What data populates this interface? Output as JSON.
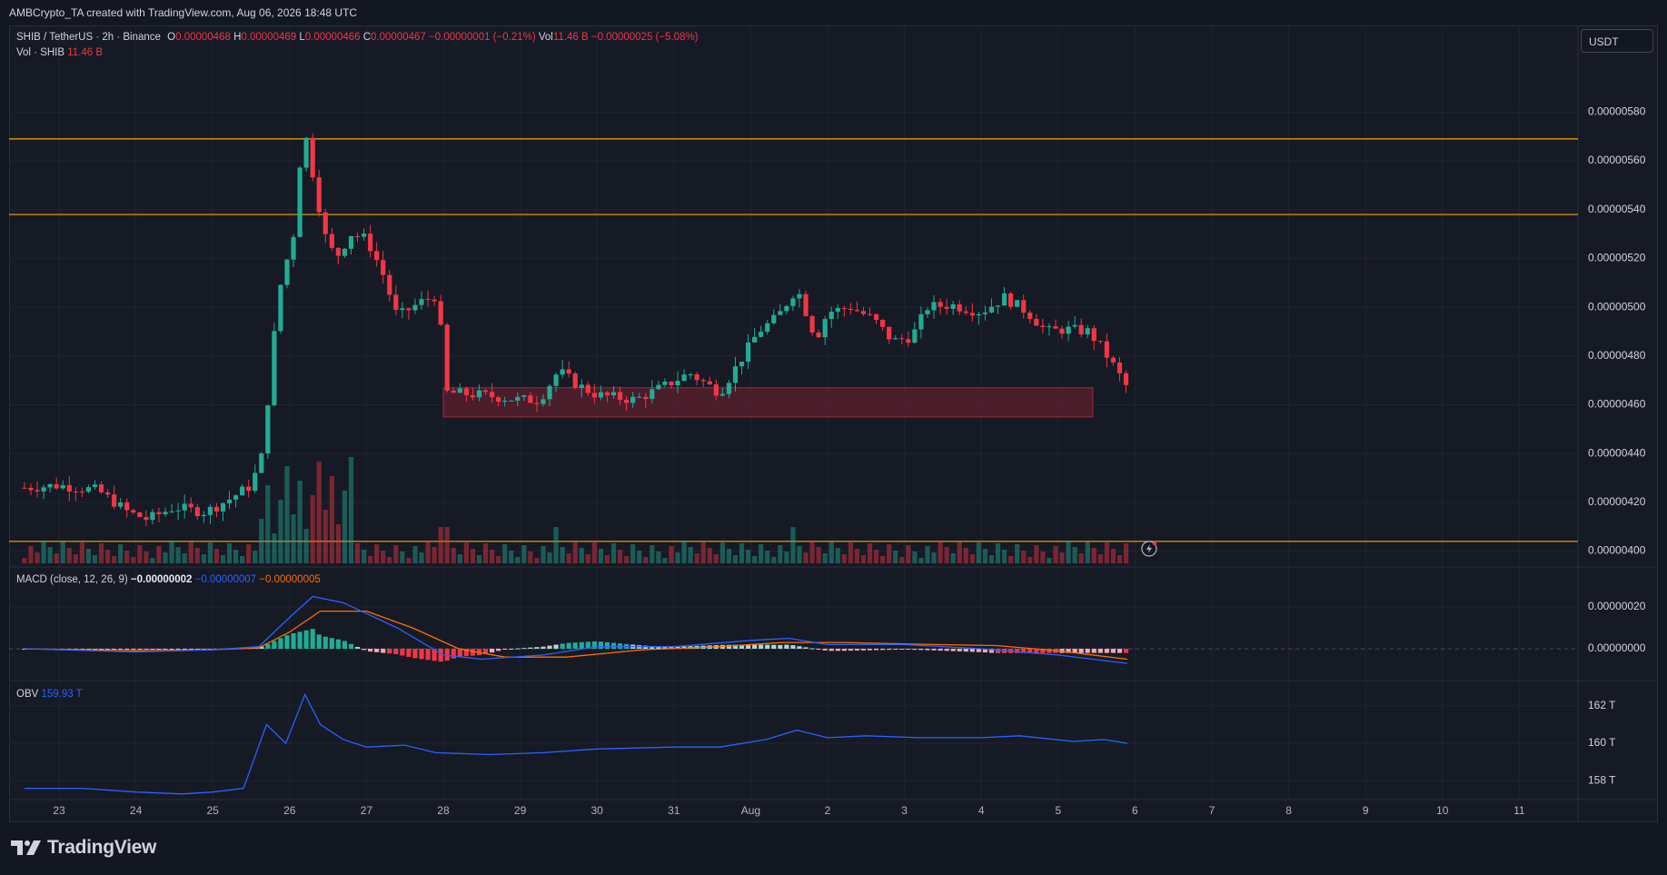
{
  "header": {
    "credit": "AMBCrypto_TA created with TradingView.com, Aug 06, 2026 18:48 UTC"
  },
  "legend": {
    "symbol": "SHIB / TetherUS · 2h · Binance",
    "o_label": "O",
    "o_value": "0.00000468",
    "h_label": "H",
    "h_value": "0.00000469",
    "l_label": "L",
    "l_value": "0.00000466",
    "c_label": "C",
    "c_value": "0.00000467",
    "change": "−0.00000001 (−0.21%)",
    "vol_label": "Vol",
    "vol_value": "11.46 B",
    "vol_change": "−0.00000025 (−5.08%)",
    "vol_line_label": "Vol · SHIB",
    "vol_line_value": "11.46 B"
  },
  "macd_legend": {
    "label": "MACD (close, 12, 26, 9)",
    "hist": "−0.00000002",
    "macd": "−0.00000007",
    "signal": "−0.00000005"
  },
  "obv_legend": {
    "label": "OBV",
    "value": "159.93 T"
  },
  "currency": "USDT",
  "brand": "TradingView",
  "colors": {
    "up": "#22ab94",
    "down": "#f23645",
    "macd": "#2962ff",
    "signal": "#ff6d00",
    "obv": "#2962ff",
    "level": "#f7a600",
    "zone": "#5c1f2e"
  },
  "chart_data": [
    {
      "type": "candlestick",
      "title": "SHIB / TetherUS · 2h · Binance",
      "x_ticks": [
        "23",
        "24",
        "25",
        "26",
        "27",
        "28",
        "29",
        "30",
        "31",
        "Aug",
        "2",
        "3",
        "4",
        "5",
        "6",
        "7",
        "8",
        "9",
        "10",
        "11"
      ],
      "y_ticks": [
        "0.00000580",
        "0.00000560",
        "0.00000540",
        "0.00000520",
        "0.00000500",
        "0.00000480",
        "0.00000460",
        "0.00000440",
        "0.00000420",
        "0.00000400"
      ],
      "ylim": [
        3.95e-06,
        5.98e-06
      ],
      "horizontal_levels": [
        5.69e-06,
        5.38e-06,
        4.04e-06
      ],
      "support_zone": {
        "from": 4.55e-06,
        "to": 4.67e-06,
        "start_day": 28.0,
        "end_day": 36.45
      },
      "keypoints": [
        {
          "day": 22.55,
          "price": 4.26e-06
        },
        {
          "day": 23.0,
          "price": 4.27e-06
        },
        {
          "day": 23.5,
          "price": 4.25e-06
        },
        {
          "day": 23.9,
          "price": 4.16e-06
        },
        {
          "day": 24.15,
          "price": 4.13e-06
        },
        {
          "day": 24.5,
          "price": 4.18e-06
        },
        {
          "day": 24.9,
          "price": 4.16e-06
        },
        {
          "day": 25.2,
          "price": 4.21e-06
        },
        {
          "day": 25.5,
          "price": 4.27e-06
        },
        {
          "day": 25.65,
          "price": 4.4e-06
        },
        {
          "day": 25.85,
          "price": 5.05e-06
        },
        {
          "day": 26.05,
          "price": 5.3e-06
        },
        {
          "day": 26.18,
          "price": 5.75e-06
        },
        {
          "day": 26.45,
          "price": 5.3e-06
        },
        {
          "day": 26.6,
          "price": 5.2e-06
        },
        {
          "day": 26.8,
          "price": 5.3e-06
        },
        {
          "day": 27.0,
          "price": 5.28e-06
        },
        {
          "day": 27.2,
          "price": 5.15e-06
        },
        {
          "day": 27.4,
          "price": 4.96e-06
        },
        {
          "day": 27.7,
          "price": 5.02e-06
        },
        {
          "day": 27.92,
          "price": 5.05e-06
        },
        {
          "day": 28.05,
          "price": 4.65e-06
        },
        {
          "day": 28.5,
          "price": 4.64e-06
        },
        {
          "day": 29.0,
          "price": 4.62e-06
        },
        {
          "day": 29.25,
          "price": 4.62e-06
        },
        {
          "day": 29.5,
          "price": 4.74e-06
        },
        {
          "day": 29.75,
          "price": 4.68e-06
        },
        {
          "day": 30.0,
          "price": 4.64e-06
        },
        {
          "day": 30.5,
          "price": 4.62e-06
        },
        {
          "day": 30.9,
          "price": 4.68e-06
        },
        {
          "day": 31.2,
          "price": 4.73e-06
        },
        {
          "day": 31.6,
          "price": 4.65e-06
        },
        {
          "day": 31.8,
          "price": 4.75e-06
        },
        {
          "day": 32.1,
          "price": 4.9e-06
        },
        {
          "day": 32.35,
          "price": 4.96e-06
        },
        {
          "day": 32.6,
          "price": 5.08e-06
        },
        {
          "day": 32.85,
          "price": 4.87e-06
        },
        {
          "day": 33.0,
          "price": 4.98e-06
        },
        {
          "day": 33.3,
          "price": 5e-06
        },
        {
          "day": 33.6,
          "price": 4.95e-06
        },
        {
          "day": 33.85,
          "price": 4.86e-06
        },
        {
          "day": 34.1,
          "price": 4.88e-06
        },
        {
          "day": 34.3,
          "price": 5e-06
        },
        {
          "day": 34.6,
          "price": 5.01e-06
        },
        {
          "day": 35.0,
          "price": 4.98e-06
        },
        {
          "day": 35.3,
          "price": 5.04e-06
        },
        {
          "day": 35.6,
          "price": 4.98e-06
        },
        {
          "day": 35.85,
          "price": 4.9e-06
        },
        {
          "day": 36.1,
          "price": 4.91e-06
        },
        {
          "day": 36.4,
          "price": 4.9e-06
        },
        {
          "day": 36.55,
          "price": 4.84e-06
        },
        {
          "day": 36.7,
          "price": 4.77e-06
        },
        {
          "day": 36.9,
          "price": 4.67e-06
        }
      ]
    },
    {
      "type": "line",
      "title": "MACD (close, 12, 26, 9)",
      "y_ticks": [
        "0.00000020",
        "0.00000000"
      ],
      "series": [
        {
          "name": "MACD",
          "keypoints": [
            [
              22.55,
              0.0
            ],
            [
              24.0,
              -1.5e-08
            ],
            [
              25.0,
              -5e-09
            ],
            [
              25.6,
              1e-08
            ],
            [
              26.0,
              1.5e-07
            ],
            [
              26.3,
              2.5e-07
            ],
            [
              26.7,
              2.2e-07
            ],
            [
              27.4,
              1e-07
            ],
            [
              28.0,
              -3e-08
            ],
            [
              28.5,
              -5e-08
            ],
            [
              29.3,
              -3e-08
            ],
            [
              30.0,
              1e-08
            ],
            [
              31.0,
              1e-08
            ],
            [
              32.0,
              4e-08
            ],
            [
              32.5,
              5e-08
            ],
            [
              33.0,
              2e-08
            ],
            [
              34.0,
              2e-08
            ],
            [
              35.0,
              0.0
            ],
            [
              36.0,
              -3e-08
            ],
            [
              36.9,
              -7e-08
            ]
          ]
        },
        {
          "name": "Signal",
          "keypoints": [
            [
              22.55,
              0.0
            ],
            [
              24.0,
              -1e-08
            ],
            [
              25.0,
              -5e-09
            ],
            [
              25.6,
              5e-09
            ],
            [
              26.0,
              8e-08
            ],
            [
              26.4,
              1.8e-07
            ],
            [
              27.0,
              1.8e-07
            ],
            [
              27.6,
              1e-07
            ],
            [
              28.2,
              0.0
            ],
            [
              28.8,
              -4e-08
            ],
            [
              29.6,
              -4e-08
            ],
            [
              30.6,
              -5e-09
            ],
            [
              31.6,
              1e-08
            ],
            [
              32.4,
              3e-08
            ],
            [
              33.2,
              3e-08
            ],
            [
              34.4,
              2e-08
            ],
            [
              35.2,
              1.5e-08
            ],
            [
              36.0,
              -1e-08
            ],
            [
              36.9,
              -5e-08
            ]
          ]
        }
      ]
    },
    {
      "type": "line",
      "title": "OBV",
      "y_ticks": [
        "162 T",
        "160 T",
        "158 T"
      ],
      "ylim": [
        157.0,
        163.2
      ],
      "series": [
        {
          "name": "OBV",
          "keypoints": [
            [
              22.55,
              157.6
            ],
            [
              23.3,
              157.6
            ],
            [
              24.0,
              157.4
            ],
            [
              24.6,
              157.3
            ],
            [
              25.0,
              157.4
            ],
            [
              25.4,
              157.6
            ],
            [
              25.7,
              161.0
            ],
            [
              25.95,
              160.0
            ],
            [
              26.2,
              162.6
            ],
            [
              26.4,
              161.0
            ],
            [
              26.7,
              160.2
            ],
            [
              27.0,
              159.8
            ],
            [
              27.5,
              159.9
            ],
            [
              27.9,
              159.5
            ],
            [
              28.6,
              159.4
            ],
            [
              29.3,
              159.5
            ],
            [
              30.0,
              159.7
            ],
            [
              31.0,
              159.8
            ],
            [
              31.6,
              159.8
            ],
            [
              32.2,
              160.2
            ],
            [
              32.6,
              160.7
            ],
            [
              33.0,
              160.3
            ],
            [
              33.5,
              160.4
            ],
            [
              34.2,
              160.3
            ],
            [
              35.0,
              160.3
            ],
            [
              35.5,
              160.4
            ],
            [
              36.2,
              160.1
            ],
            [
              36.6,
              160.2
            ],
            [
              36.9,
              160.0
            ]
          ]
        }
      ]
    }
  ]
}
